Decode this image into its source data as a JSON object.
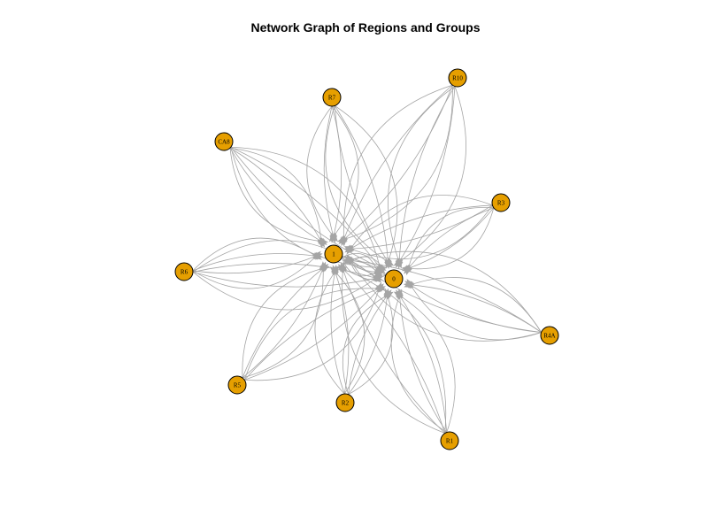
{
  "title": "Network Graph of Regions and Groups",
  "colors": {
    "node_fill": "#E69F00",
    "node_stroke": "#000000",
    "edge": "#A5A5A5",
    "background": "#FFFFFF"
  },
  "nodes": [
    {
      "id": "1",
      "label": "1",
      "role": "group"
    },
    {
      "id": "0",
      "label": "0",
      "role": "group"
    },
    {
      "id": "R7",
      "label": "R7",
      "role": "region"
    },
    {
      "id": "R10",
      "label": "R10",
      "role": "region"
    },
    {
      "id": "CA8",
      "label": "CA8",
      "role": "region"
    },
    {
      "id": "R3",
      "label": "R3",
      "role": "region"
    },
    {
      "id": "R6",
      "label": "R6",
      "role": "region"
    },
    {
      "id": "R4A",
      "label": "R4A",
      "role": "region"
    },
    {
      "id": "R5",
      "label": "R5",
      "role": "region"
    },
    {
      "id": "R2",
      "label": "R2",
      "role": "region"
    },
    {
      "id": "R1",
      "label": "R1",
      "role": "region"
    }
  ],
  "edges_per_pair": 4
}
